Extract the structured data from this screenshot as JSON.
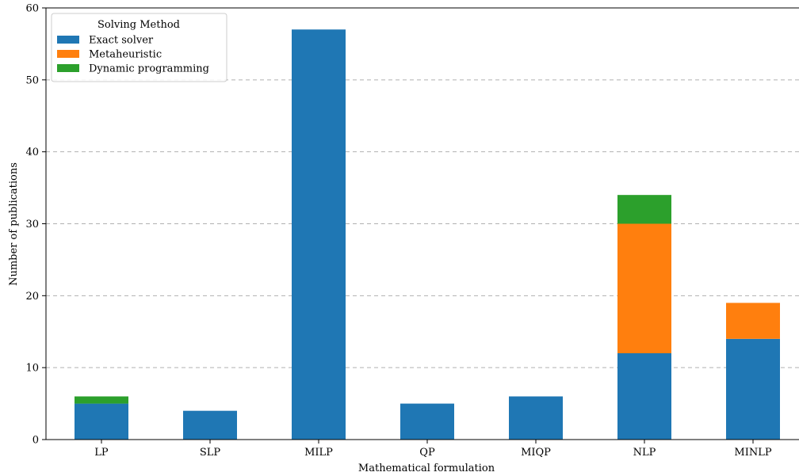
{
  "chart_data": {
    "type": "bar",
    "stacked": true,
    "categories": [
      "LP",
      "SLP",
      "MILP",
      "QP",
      "MIQP",
      "NLP",
      "MINLP"
    ],
    "series": [
      {
        "name": "Exact solver",
        "color": "#1f77b4",
        "values": [
          5,
          4,
          57,
          5,
          6,
          12,
          14
        ]
      },
      {
        "name": "Metaheuristic",
        "color": "#ff7f0e",
        "values": [
          0,
          0,
          0,
          0,
          0,
          18,
          5
        ]
      },
      {
        "name": "Dynamic programming",
        "color": "#2ca02c",
        "values": [
          1,
          0,
          0,
          0,
          0,
          4,
          0
        ]
      }
    ],
    "xlabel": "Mathematical formulation",
    "ylabel": "Number of publications",
    "ylim": [
      0,
      60
    ],
    "yticks": [
      0,
      10,
      20,
      30,
      40,
      50,
      60
    ],
    "grid": "horizontal dashed",
    "legend": {
      "title": "Solving Method",
      "placement": "top-left"
    }
  }
}
